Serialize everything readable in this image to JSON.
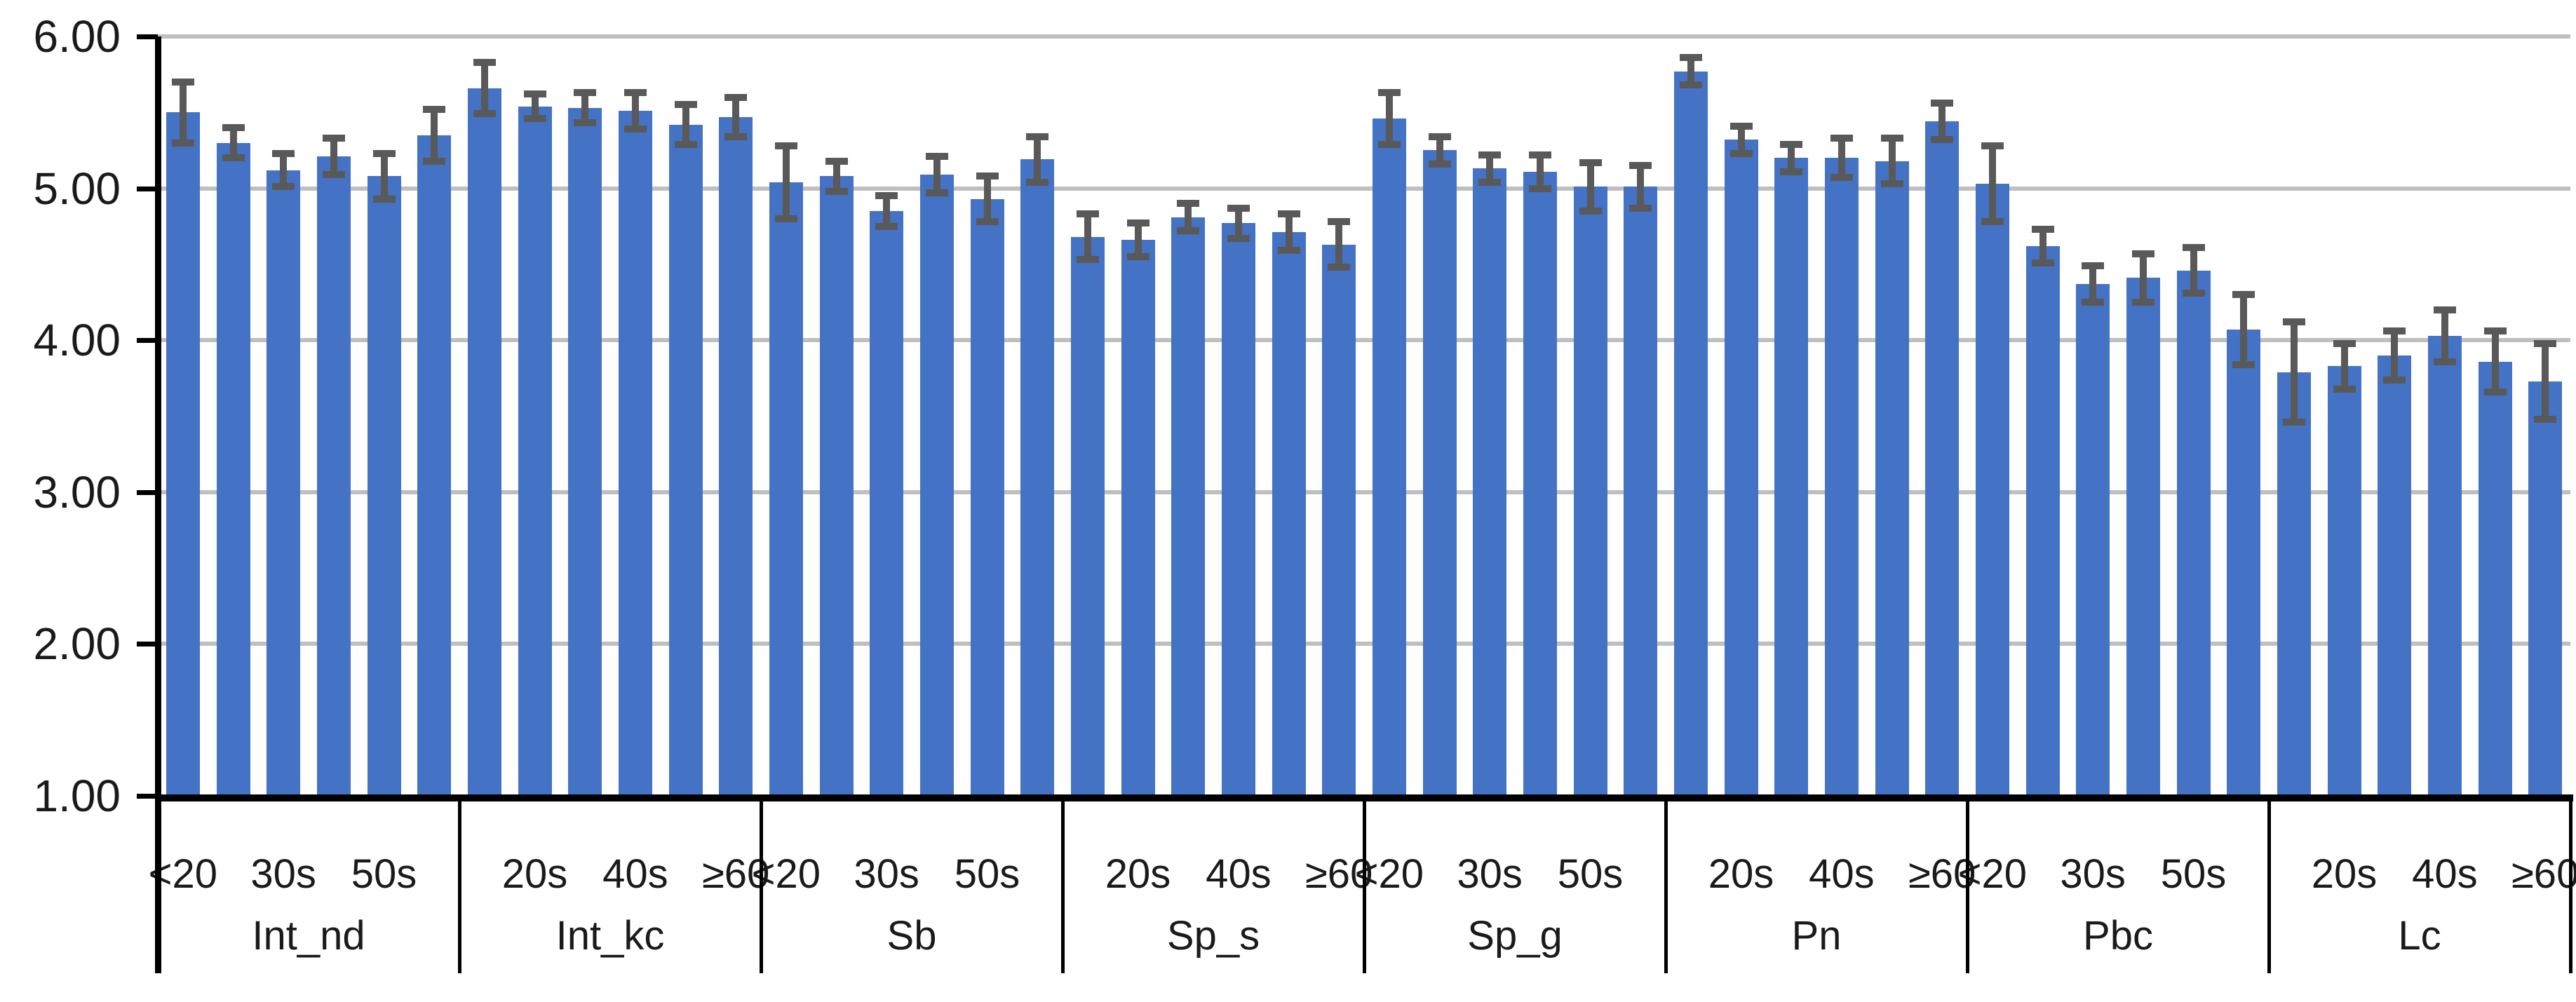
{
  "chart_data": {
    "type": "bar",
    "y_axis": {
      "tick_labels": [
        "6.00",
        "5.00",
        "4.00",
        "3.00",
        "2.00",
        "1.00"
      ],
      "min": 1,
      "max": 6,
      "gridlines": true
    },
    "age_categories": [
      "<20",
      "20s",
      "30s",
      "40s",
      "50s",
      "≥60"
    ],
    "groups": [
      {
        "label": "Int_nd",
        "shown_tick_labels": [
          "<20",
          "30s",
          "50s"
        ],
        "shown_tick_slots": [
          0,
          2,
          4
        ],
        "values": [
          5.5,
          5.3,
          5.12,
          5.21,
          5.08,
          5.35
        ],
        "errors": [
          0.2,
          0.1,
          0.11,
          0.12,
          0.15,
          0.17
        ]
      },
      {
        "label": "Int_kc",
        "shown_tick_labels": [
          "20s",
          "40s",
          "≥60"
        ],
        "shown_tick_slots": [
          1,
          3,
          5
        ],
        "values": [
          5.66,
          5.54,
          5.53,
          5.51,
          5.42,
          5.47
        ],
        "errors": [
          0.17,
          0.08,
          0.1,
          0.12,
          0.13,
          0.13
        ]
      },
      {
        "label": "Sb",
        "shown_tick_labels": [
          "<20",
          "30s",
          "50s"
        ],
        "shown_tick_slots": [
          0,
          2,
          4
        ],
        "values": [
          5.04,
          5.08,
          4.85,
          5.09,
          4.93,
          5.19
        ],
        "errors": [
          0.24,
          0.1,
          0.1,
          0.12,
          0.15,
          0.15
        ]
      },
      {
        "label": "Sp_s",
        "shown_tick_labels": [
          "20s",
          "40s",
          "≥60"
        ],
        "shown_tick_slots": [
          1,
          3,
          5
        ],
        "values": [
          4.68,
          4.66,
          4.81,
          4.77,
          4.71,
          4.63
        ],
        "errors": [
          0.15,
          0.11,
          0.09,
          0.1,
          0.12,
          0.15
        ]
      },
      {
        "label": "Sp_g",
        "shown_tick_labels": [
          "<20",
          "30s",
          "50s"
        ],
        "shown_tick_slots": [
          0,
          2,
          4
        ],
        "values": [
          5.46,
          5.25,
          5.13,
          5.11,
          5.01,
          5.01
        ],
        "errors": [
          0.17,
          0.09,
          0.09,
          0.11,
          0.16,
          0.14
        ]
      },
      {
        "label": "Pn",
        "shown_tick_labels": [
          "20s",
          "40s",
          "≥60"
        ],
        "shown_tick_slots": [
          1,
          3,
          5
        ],
        "values": [
          5.77,
          5.32,
          5.2,
          5.2,
          5.18,
          5.44
        ],
        "errors": [
          0.09,
          0.09,
          0.09,
          0.13,
          0.15,
          0.12
        ]
      },
      {
        "label": "Pbc",
        "shown_tick_labels": [
          "<20",
          "30s",
          "50s"
        ],
        "shown_tick_slots": [
          0,
          2,
          4
        ],
        "values": [
          5.03,
          4.62,
          4.37,
          4.41,
          4.46,
          4.07
        ],
        "errors": [
          0.25,
          0.11,
          0.12,
          0.16,
          0.15,
          0.23
        ]
      },
      {
        "label": "Lc",
        "shown_tick_labels": [
          "20s",
          "40s",
          "≥60"
        ],
        "shown_tick_slots": [
          1,
          3,
          5
        ],
        "values": [
          3.79,
          3.83,
          3.9,
          4.03,
          3.86,
          3.73
        ],
        "errors": [
          0.33,
          0.15,
          0.16,
          0.17,
          0.2,
          0.25
        ]
      }
    ],
    "error_bars": true,
    "legend": false,
    "colors": {
      "bar": "#4472C4",
      "error_bar": "#595959",
      "gridline": "#BFBFBF",
      "axis": "#000000",
      "background": "#FFFFFF"
    }
  }
}
